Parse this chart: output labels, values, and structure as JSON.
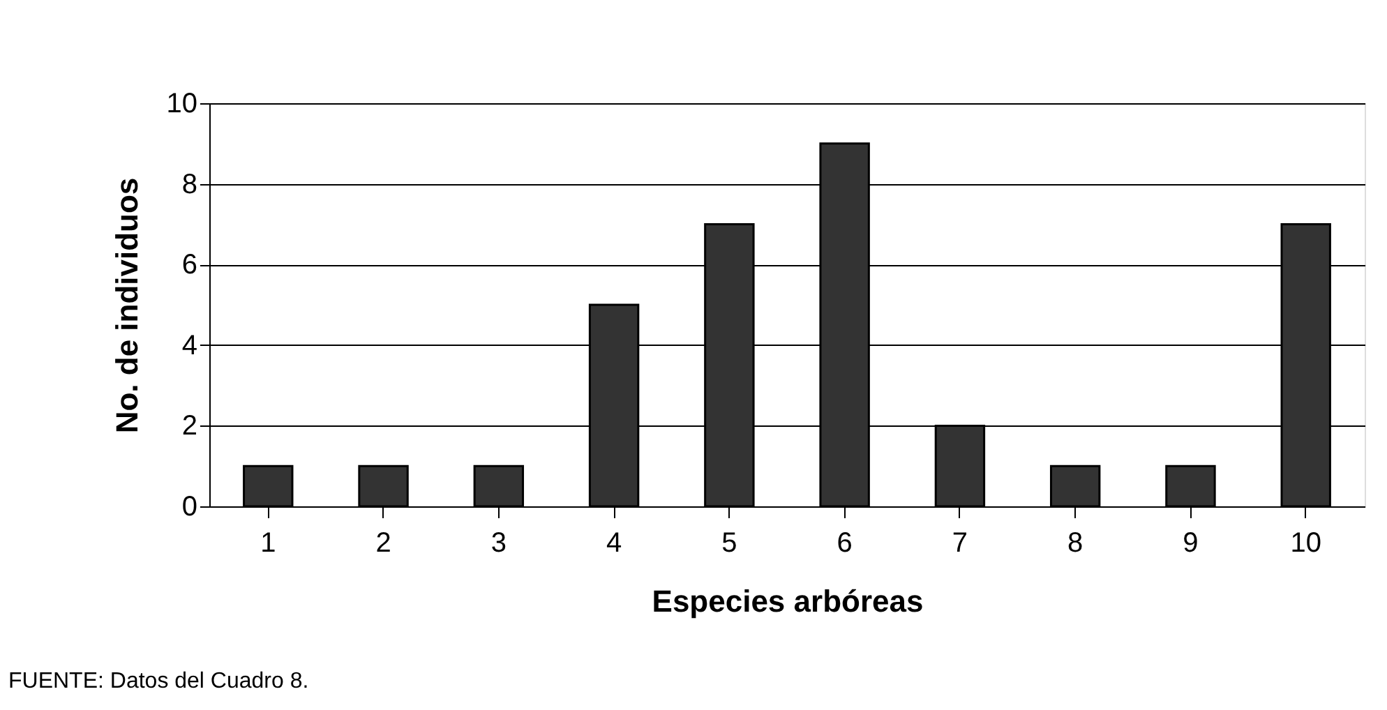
{
  "chart_data": {
    "type": "bar",
    "xlabel": "Especies arbóreas",
    "ylabel": "No. de individuos",
    "categories": [
      "1",
      "2",
      "3",
      "4",
      "5",
      "6",
      "7",
      "8",
      "9",
      "10"
    ],
    "values": [
      1,
      1,
      1,
      5,
      7,
      9,
      2,
      1,
      1,
      7
    ],
    "color": "#333333",
    "ylim": [
      0,
      10
    ],
    "yticks": [
      0,
      2,
      4,
      6,
      8,
      10
    ],
    "grid": "y",
    "annotations": [
      "FUENTE: Datos del Cuadro 8."
    ]
  }
}
